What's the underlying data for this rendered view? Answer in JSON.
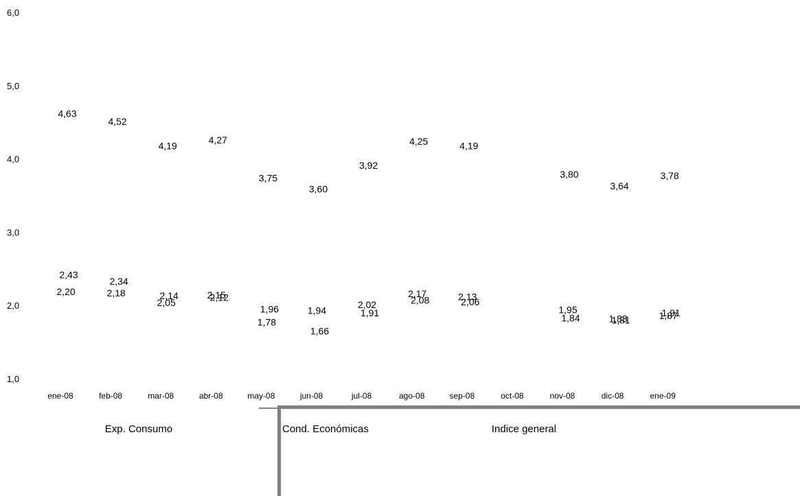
{
  "chart_data": {
    "type": "scatter",
    "title": "",
    "xlabel": "",
    "ylabel": "",
    "ylim": [
      1.0,
      6.0
    ],
    "y_ticks": [
      "1,0",
      "2,0",
      "3,0",
      "4,0",
      "5,0",
      "6,0"
    ],
    "grid": false,
    "categories": [
      "ene-08",
      "feb-08",
      "mar-08",
      "abr-08",
      "may-08",
      "jun-08",
      "jul-08",
      "ago-08",
      "sep-08",
      "oct-08",
      "nov-08",
      "dic-08",
      "ene-09"
    ],
    "series": [
      {
        "name": "Exp. Consumo",
        "values": [
          4.63,
          4.52,
          4.19,
          4.27,
          3.75,
          3.6,
          3.92,
          4.25,
          4.19,
          null,
          3.8,
          3.64,
          3.78
        ],
        "labels": [
          "4,63",
          "4,52",
          "4,19",
          "4,27",
          "3,75",
          "3,60",
          "3,92",
          "4,25",
          "4,19",
          "",
          "3,80",
          "3,64",
          "3,78"
        ]
      },
      {
        "name": "Cond. Económicas",
        "values": [
          2.2,
          2.18,
          2.05,
          2.15,
          1.78,
          1.94,
          2.02,
          2.17,
          2.13,
          null,
          1.95,
          1.83,
          1.87
        ],
        "labels": [
          "2,20",
          "2,18",
          "2,05",
          "2,15",
          "1,78",
          "1,94",
          "2,02",
          "2,17",
          "2,13",
          "",
          "1,95",
          "1,83",
          "1,87"
        ]
      },
      {
        "name": "Indice general",
        "values": [
          2.43,
          2.34,
          2.14,
          2.12,
          1.96,
          1.66,
          1.91,
          2.08,
          2.06,
          null,
          1.84,
          1.81,
          1.91
        ],
        "labels": [
          "2,43",
          "2,34",
          "2,14",
          "2,12",
          "1,96",
          "1,66",
          "1,91",
          "2,08",
          "2,06",
          "",
          "1,84",
          "1,81",
          "1,91"
        ]
      }
    ],
    "legend": [
      "Exp. Consumo",
      "Cond. Económicas",
      "Indice general"
    ],
    "legend_position": "bottom"
  }
}
